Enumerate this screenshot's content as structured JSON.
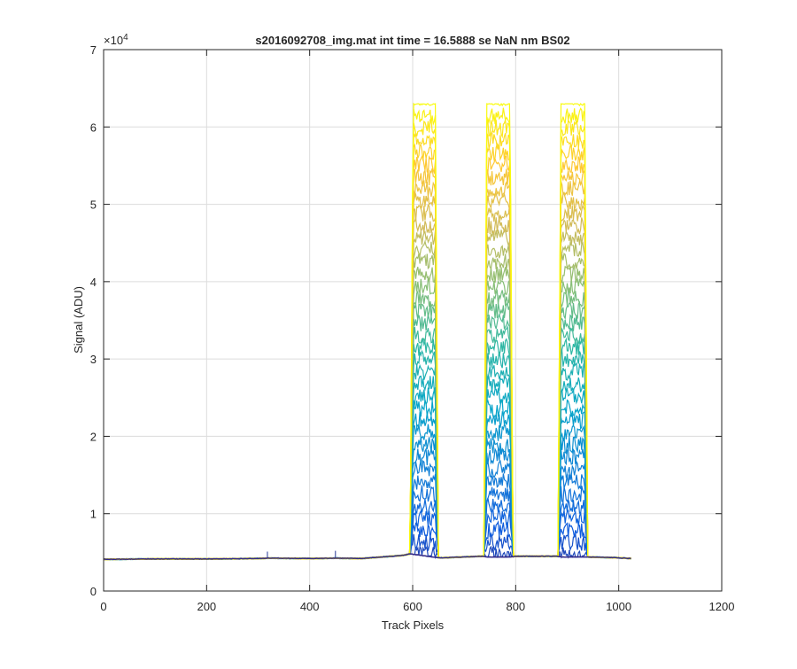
{
  "chart_data": {
    "type": "line",
    "title": "s2016092708_img.mat int time = 16.5888 se  NaN nm BS02",
    "xlabel": "Track Pixels",
    "ylabel": "Signal (ADU)",
    "xlim": [
      0,
      1200
    ],
    "ylim": [
      0,
      70000
    ],
    "x_ticks": [
      "0",
      "200",
      "400",
      "600",
      "800",
      "1000",
      "1200"
    ],
    "y_ticks": [
      "0",
      "1",
      "2",
      "3",
      "4",
      "5",
      "6",
      "7"
    ],
    "y_exponent": {
      "base": "×10",
      "power": "4"
    },
    "grid": true,
    "colormap": [
      "#352A87",
      "#0F5CDD",
      "#1481D6",
      "#06A4CA",
      "#2EB7A4",
      "#87BF77",
      "#D1BB59",
      "#FEC832",
      "#F9FB0E"
    ],
    "baseline": {
      "x": [
        0,
        100,
        200,
        300,
        320,
        400,
        450,
        500,
        580,
        595,
        650,
        660,
        735,
        745,
        790,
        800,
        880,
        890,
        940,
        1000,
        1024
      ],
      "y": [
        4100,
        4150,
        4150,
        4200,
        4250,
        4200,
        4250,
        4200,
        4600,
        4800,
        4300,
        4300,
        4500,
        4400,
        4400,
        4500,
        4500,
        4400,
        4400,
        4300,
        4200
      ]
    },
    "spikes": [
      {
        "x": 318,
        "y": 5100
      },
      {
        "x": 450,
        "y": 5200
      }
    ],
    "saturated_bands": [
      {
        "x_start": 595,
        "x_end": 650,
        "peak": 63000
      },
      {
        "x_start": 738,
        "x_end": 795,
        "peak": 63000
      },
      {
        "x_start": 882,
        "x_end": 940,
        "peak": 63000
      }
    ],
    "overlay_curves": 40
  }
}
